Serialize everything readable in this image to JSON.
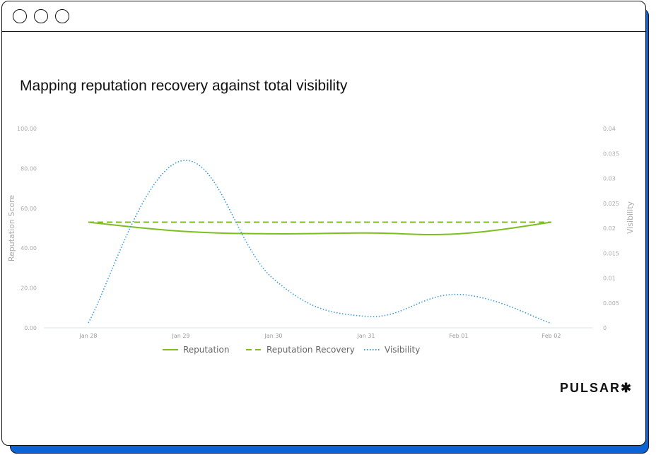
{
  "chart": {
    "title": "Mapping reputation recovery against total visibility"
  },
  "brand": "PULSAR✱",
  "chart_data": {
    "type": "line",
    "title": "Mapping reputation recovery against total visibility",
    "categories": [
      "Jan 28",
      "Jan 29",
      "Jan 30",
      "Jan 31",
      "Feb 01",
      "Feb 02"
    ],
    "ylabel": "Reputation Score",
    "y2label": "Visibility",
    "ylim": [
      0,
      100
    ],
    "y2lim": [
      0,
      0.04
    ],
    "yticks": [
      "0.00",
      "20.00",
      "40.00",
      "60.00",
      "80.00",
      "100.00"
    ],
    "y2ticks": [
      "0",
      "0.005",
      "0.01",
      "0.015",
      "0.02",
      "0.025",
      "0.03",
      "0.035",
      "0.04"
    ],
    "series": [
      {
        "name": "Reputation",
        "axis": "left",
        "style": "solid",
        "color": "#7cbf1f",
        "values": [
          53,
          48.5,
          47.2,
          47.6,
          47.2,
          53
        ]
      },
      {
        "name": "Reputation Recovery",
        "axis": "left",
        "style": "dashed",
        "color": "#7cbf1f",
        "values": [
          53,
          53,
          53,
          53,
          53,
          53
        ]
      },
      {
        "name": "Visibility",
        "axis": "right",
        "style": "dotted",
        "color": "#3a9ad9",
        "values": [
          0.001,
          0.0335,
          0.0098,
          0.0023,
          0.0067,
          0.0009
        ]
      }
    ],
    "legend": "bottom"
  }
}
